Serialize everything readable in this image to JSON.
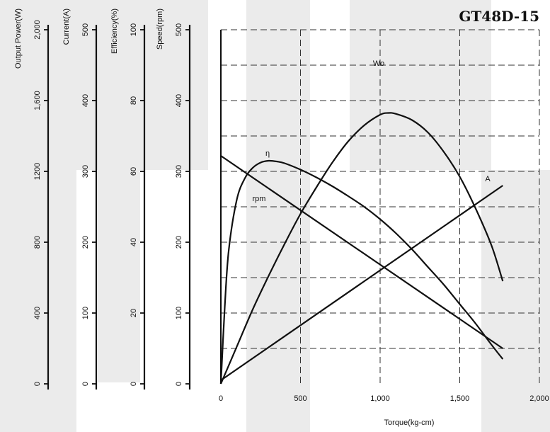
{
  "colors": {
    "band": "#ebebeb",
    "line": "#111111",
    "background": "#ffffff"
  },
  "chart_data": {
    "type": "line",
    "title": "GT48D-15",
    "xlabel": "Torque(kg-cm)",
    "xlim": [
      0,
      2000
    ],
    "x_ticks": [
      {
        "value": 0,
        "label": "0"
      },
      {
        "value": 500,
        "label": "500"
      },
      {
        "value": 1000,
        "label": "1,000"
      },
      {
        "value": 1500,
        "label": "1,500"
      },
      {
        "value": 2000,
        "label": "2,000"
      }
    ],
    "y_axes": [
      {
        "id": "power",
        "label": "Output Power(W)",
        "range": [
          0,
          2000
        ],
        "tick_labels": [
          "0",
          "400",
          "800",
          "1200",
          "1,600",
          "2,000"
        ]
      },
      {
        "id": "current",
        "label": "Current(A)",
        "range": [
          0,
          500
        ],
        "tick_labels": [
          "0",
          "100",
          "200",
          "300",
          "400",
          "500"
        ]
      },
      {
        "id": "efficiency",
        "label": "Efficiency(%)",
        "range": [
          0,
          100
        ],
        "tick_labels": [
          "0",
          "20",
          "40",
          "60",
          "80",
          "100"
        ]
      },
      {
        "id": "speed",
        "label": "Speed(rpm)",
        "range": [
          0,
          500
        ],
        "tick_labels": [
          "0",
          "100",
          "200",
          "300",
          "400",
          "500"
        ]
      }
    ],
    "grid": {
      "x": true,
      "y": true,
      "y_divisions": 10
    },
    "series": [
      {
        "name": "Wo",
        "axis": "power",
        "x": [
          0,
          100,
          200,
          300,
          400,
          500,
          600,
          700,
          800,
          900,
          1000,
          1050,
          1100,
          1200,
          1300,
          1400,
          1500,
          1600,
          1700,
          1770
        ],
        "y": [
          0,
          210,
          420,
          610,
          790,
          960,
          1110,
          1250,
          1370,
          1460,
          1520,
          1530,
          1525,
          1490,
          1420,
          1310,
          1170,
          990,
          780,
          580
        ]
      },
      {
        "name": "η",
        "axis": "efficiency",
        "x": [
          0,
          25,
          50,
          100,
          150,
          200,
          250,
          300,
          350,
          400,
          500,
          600,
          700,
          800,
          900,
          1000,
          1100,
          1200,
          1300,
          1400,
          1500,
          1600,
          1700,
          1770
        ],
        "y": [
          0,
          22,
          38,
          52,
          58,
          61,
          62.5,
          63,
          62.8,
          62.3,
          60.5,
          58.3,
          55.8,
          53,
          50,
          46.5,
          42.5,
          38,
          33,
          28,
          22.5,
          17,
          11,
          7
        ]
      },
      {
        "name": "A",
        "axis": "current",
        "x": [
          0,
          1770
        ],
        "y": [
          5,
          280
        ]
      },
      {
        "name": "rpm",
        "axis": "speed",
        "x": [
          0,
          1770
        ],
        "y": [
          322,
          50
        ]
      }
    ]
  }
}
